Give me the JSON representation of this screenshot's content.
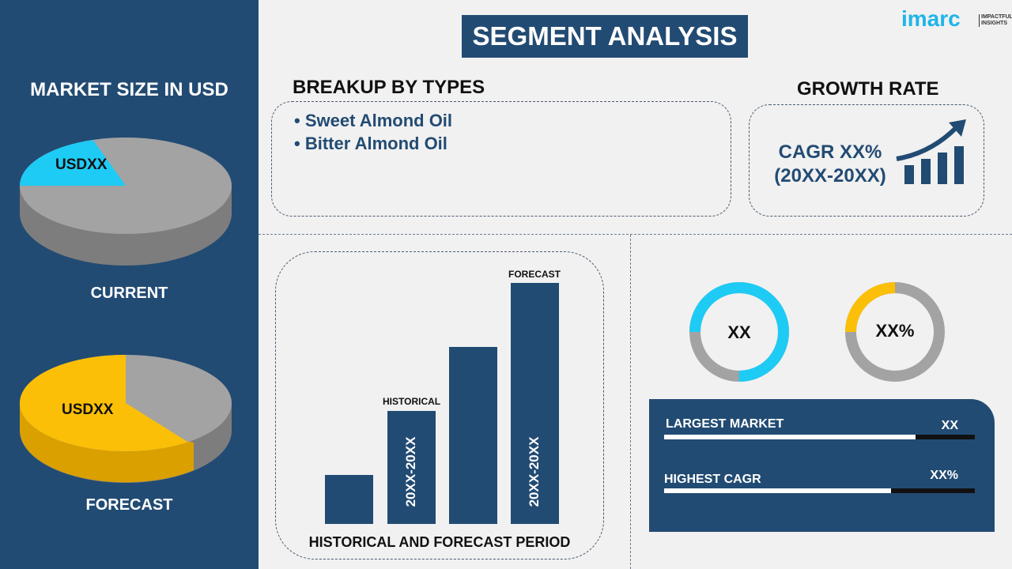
{
  "title": "SEGMENT ANALYSIS",
  "logo": {
    "text": "imarc",
    "tagline": "IMPACTFUL INSIGHTS"
  },
  "left": {
    "heading": "MARKET SIZE IN USD",
    "current": {
      "label": "CURRENT",
      "value": "USDXX",
      "share": 0.2,
      "color": "#1ecbf5"
    },
    "forecast": {
      "label": "FORECAST",
      "value": "USDXX",
      "share": 0.6,
      "color": "#fbbf07"
    }
  },
  "breakup": {
    "heading": "BREAKUP BY TYPES",
    "items": [
      "Sweet Almond Oil",
      "Bitter Almond Oil"
    ]
  },
  "growth": {
    "heading": "GROWTH RATE",
    "line1": "CAGR XX%",
    "line2": "(20XX-20XX)"
  },
  "chart_data": {
    "type": "bar",
    "values": [
      1,
      2.3,
      3.6,
      4.9
    ],
    "labels": {
      "historical": "HISTORICAL",
      "forecast": "FORECAST",
      "historical_period": "20XX-20XX",
      "forecast_period": "20XX-20XX"
    },
    "xlabel": "HISTORICAL AND FORECAST PERIOD"
  },
  "donuts": [
    {
      "value": "XX",
      "share": 0.75,
      "color": "#1ecbf5"
    },
    {
      "value": "XX%",
      "share": 0.25,
      "color": "#fbbf07"
    }
  ],
  "stats": [
    {
      "label": "LARGEST MARKET",
      "value": "XX",
      "progress": 0.81
    },
    {
      "label": "HIGHEST CAGR",
      "value": "XX%",
      "progress": 0.73
    }
  ]
}
